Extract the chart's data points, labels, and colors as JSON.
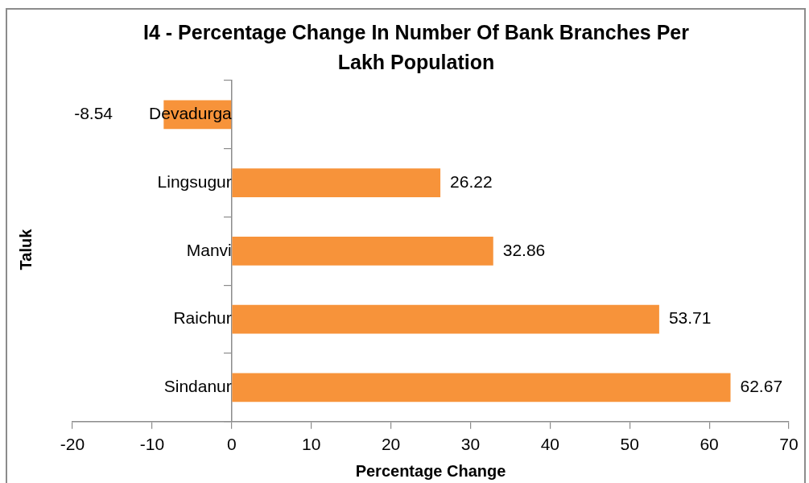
{
  "chart_data": {
    "type": "bar",
    "orientation": "horizontal",
    "title": "I4 - Percentage Change In Number Of Bank Branches Per Lakh Population",
    "xlabel": "Percentage Change",
    "ylabel": "Taluk",
    "categories": [
      "Devadurga",
      "Lingsugur",
      "Manvi",
      "Raichur",
      "Sindanur"
    ],
    "values": [
      -8.54,
      26.22,
      32.86,
      53.71,
      62.67
    ],
    "color": "#f7933a",
    "xlim": [
      -20,
      70
    ],
    "xticks": [
      -20,
      -10,
      0,
      10,
      20,
      30,
      40,
      50,
      60,
      70
    ],
    "data_labels": true
  }
}
